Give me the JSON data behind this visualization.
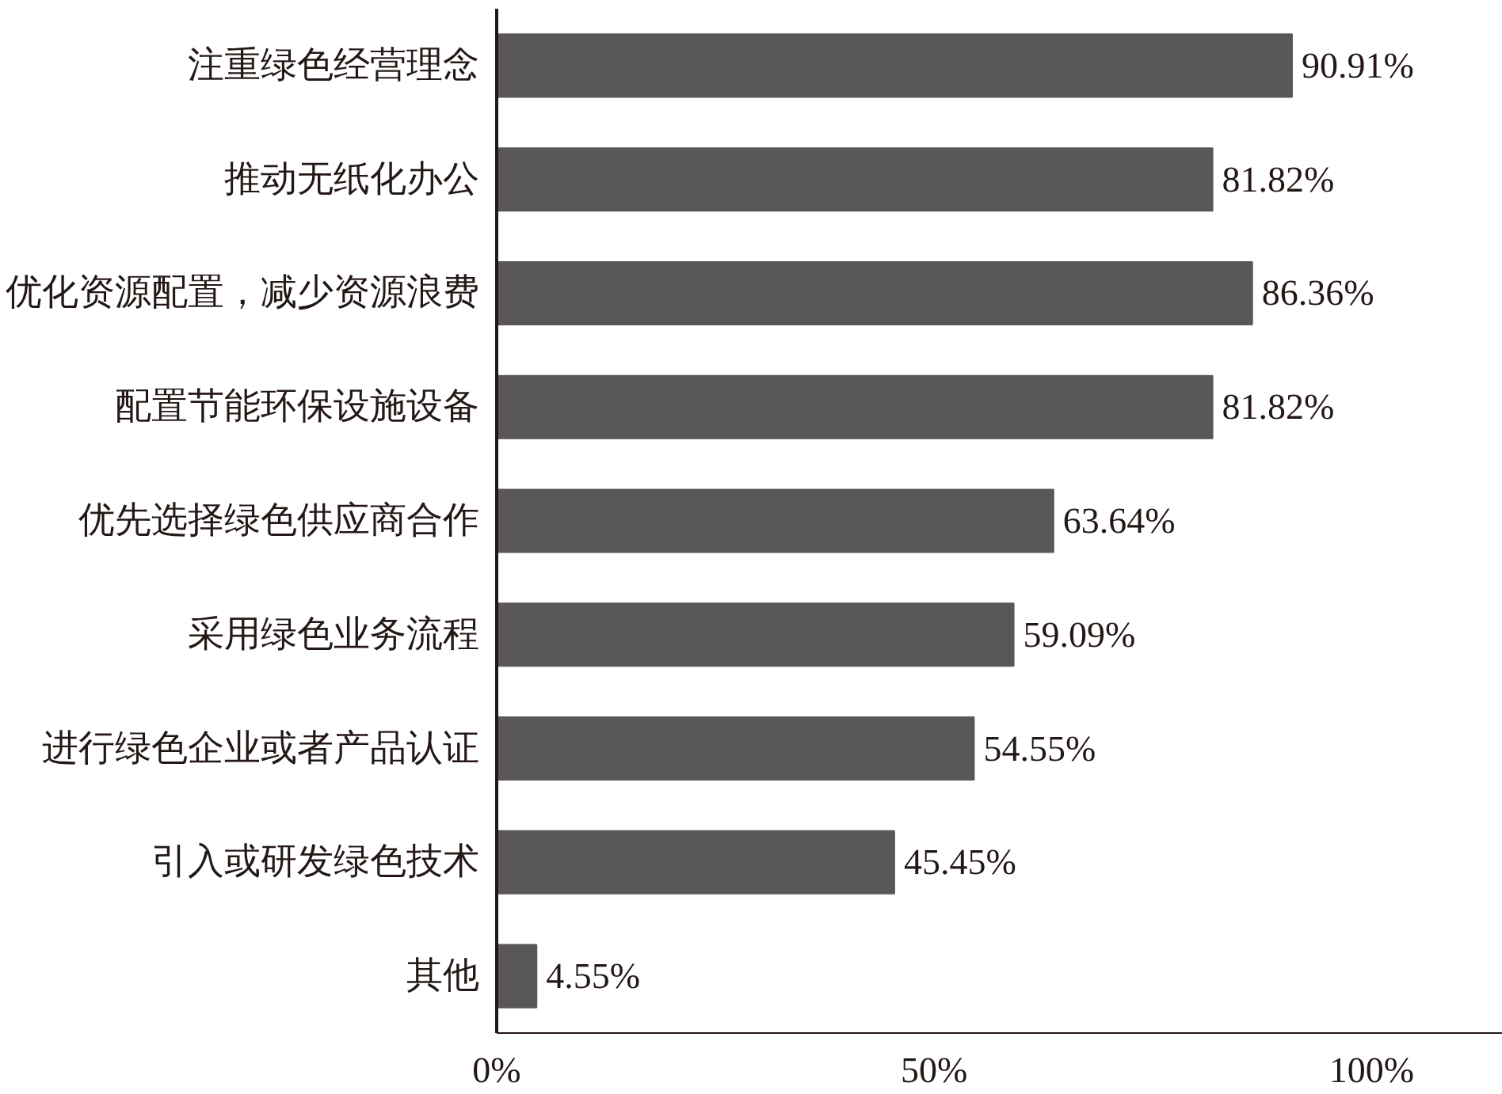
{
  "chart_data": {
    "type": "bar",
    "orientation": "horizontal",
    "categories": [
      "注重绿色经营理念",
      "推动无纸化办公",
      "优化资源配置，减少资源浪费",
      "配置节能环保设施设备",
      "优先选择绿色供应商合作",
      "采用绿色业务流程",
      "进行绿色企业或者产品认证",
      "引入或研发绿色技术",
      "其他"
    ],
    "values": [
      90.91,
      81.82,
      86.36,
      81.82,
      63.64,
      59.09,
      54.55,
      45.45,
      4.55
    ],
    "value_labels": [
      "90.91%",
      "81.82%",
      "86.36%",
      "81.82%",
      "63.64%",
      "59.09%",
      "54.55%",
      "45.45%",
      "4.55%"
    ],
    "color": "#595757",
    "xlim": [
      0,
      115
    ],
    "xticks": [
      {
        "value": 0,
        "label": "0%"
      },
      {
        "value": 50,
        "label": "50%"
      },
      {
        "value": 100,
        "label": "100%"
      }
    ],
    "grid": false
  }
}
